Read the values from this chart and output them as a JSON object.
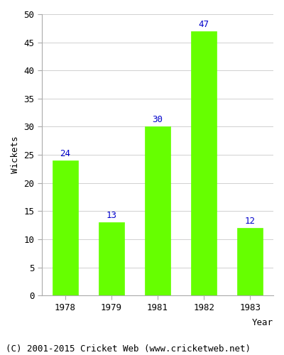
{
  "categories": [
    "1978",
    "1979",
    "1981",
    "1982",
    "1983"
  ],
  "values": [
    24,
    13,
    30,
    47,
    12
  ],
  "bar_color": "#66ff00",
  "bar_edgecolor": "#66ff00",
  "label_color": "#0000cc",
  "xlabel": "Year",
  "ylabel": "Wickets",
  "ylim": [
    0,
    50
  ],
  "yticks": [
    0,
    5,
    10,
    15,
    20,
    25,
    30,
    35,
    40,
    45,
    50
  ],
  "grid_color": "#d0d0d0",
  "background_color": "#ffffff",
  "caption": "(C) 2001-2015 Cricket Web (www.cricketweb.net)",
  "label_fontsize": 9,
  "axis_fontsize": 9,
  "caption_fontsize": 9
}
